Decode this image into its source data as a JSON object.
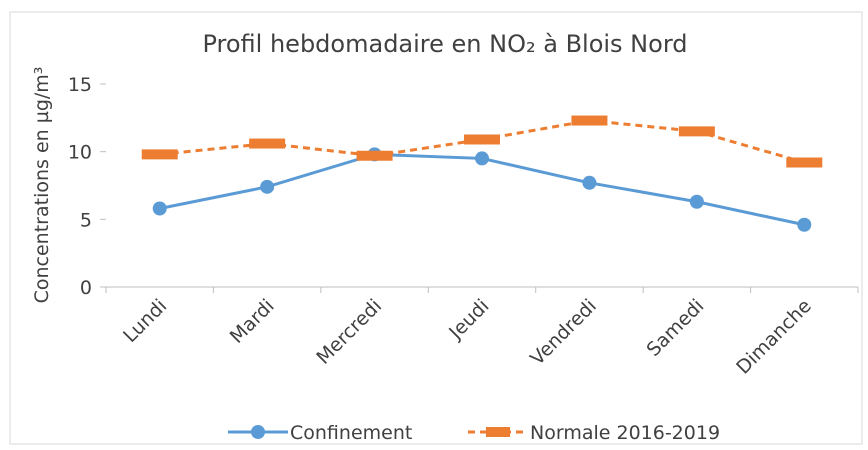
{
  "chart_data": {
    "type": "line",
    "title": "Profil hebdomadaire en NO₂ à Blois Nord",
    "y_label": "Concentrations en µg/m³",
    "categories": [
      "Lundi",
      "Mardi",
      "Mercredi",
      "Jeudi",
      "Vendredi",
      "Samedi",
      "Dimanche"
    ],
    "series": [
      {
        "name": "Confinement",
        "color": "#5b9bd5",
        "style": "solid-circle",
        "values": [
          5.8,
          7.4,
          9.8,
          9.5,
          7.7,
          6.3,
          4.6
        ]
      },
      {
        "name": "Normale 2016-2019",
        "color": "#ed7d31",
        "style": "dashed-bar",
        "values": [
          9.8,
          10.6,
          9.7,
          10.9,
          12.3,
          11.5,
          9.2
        ]
      }
    ],
    "ylim": [
      0,
      15
    ],
    "yticks": [
      0,
      5,
      10,
      15
    ],
    "grid": false,
    "legend": "bottom"
  }
}
